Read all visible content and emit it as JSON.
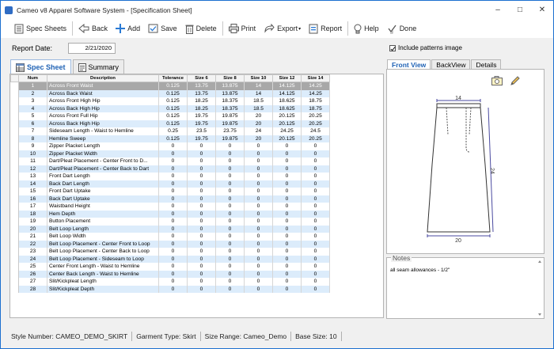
{
  "window": {
    "title": "Cameo v8 Apparel Software System - [Specification Sheet]"
  },
  "toolbar": {
    "spec_sheets": "Spec Sheets",
    "back": "Back",
    "add": "Add",
    "save": "Save",
    "delete": "Delete",
    "print": "Print",
    "export": "Export",
    "report": "Report",
    "help": "Help",
    "done": "Done"
  },
  "report_date": {
    "label": "Report Date:",
    "value": "2/21/2020"
  },
  "left_tabs": {
    "spec_sheet": "Spec Sheet",
    "summary": "Summary"
  },
  "grid": {
    "columns": [
      "Num",
      "Description",
      "Tolerance",
      "Size 6",
      "Size 8",
      "Size 10",
      "Size 12",
      "Size 14"
    ],
    "rows": [
      [
        "1",
        "Across Front Waist",
        "0.125",
        "13.75",
        "13.875",
        "14",
        "14.125",
        "14.25"
      ],
      [
        "2",
        "Across Back Waist",
        "0.125",
        "13.75",
        "13.875",
        "14",
        "14.125",
        "14.25"
      ],
      [
        "3",
        "Across Front High Hip",
        "0.125",
        "18.25",
        "18.375",
        "18.5",
        "18.625",
        "18.75"
      ],
      [
        "4",
        "Across Back High Hip",
        "0.125",
        "18.25",
        "18.375",
        "18.5",
        "18.625",
        "18.75"
      ],
      [
        "5",
        "Across Front Full Hip",
        "0.125",
        "19.75",
        "19.875",
        "20",
        "20.125",
        "20.25"
      ],
      [
        "6",
        "Across Back High Hip",
        "0.125",
        "19.75",
        "19.875",
        "20",
        "20.125",
        "20.25"
      ],
      [
        "7",
        "Sideseam Length - Waist to Hemline",
        "0.25",
        "23.5",
        "23.75",
        "24",
        "24.25",
        "24.5"
      ],
      [
        "8",
        "Hemline Sweep",
        "0.125",
        "19.75",
        "19.875",
        "20",
        "20.125",
        "20.25"
      ],
      [
        "9",
        "Zipper Placket Length",
        "0",
        "0",
        "0",
        "0",
        "0",
        "0"
      ],
      [
        "10",
        "Zipper Placket Width",
        "0",
        "0",
        "0",
        "0",
        "0",
        "0"
      ],
      [
        "11",
        "Dart/Pleat Placement - Center Front to D...",
        "0",
        "0",
        "0",
        "0",
        "0",
        "0"
      ],
      [
        "12",
        "Dart/Pleat Placement - Center Back to Dart",
        "0",
        "0",
        "0",
        "0",
        "0",
        "0"
      ],
      [
        "13",
        "Front Dart Length",
        "0",
        "0",
        "0",
        "0",
        "0",
        "0"
      ],
      [
        "14",
        "Back Dart Length",
        "0",
        "0",
        "0",
        "0",
        "0",
        "0"
      ],
      [
        "15",
        "Front Dart Uptake",
        "0",
        "0",
        "0",
        "0",
        "0",
        "0"
      ],
      [
        "16",
        "Back Dart Uptake",
        "0",
        "0",
        "0",
        "0",
        "0",
        "0"
      ],
      [
        "17",
        "Waistband Height",
        "0",
        "0",
        "0",
        "0",
        "0",
        "0"
      ],
      [
        "18",
        "Hem Depth",
        "0",
        "0",
        "0",
        "0",
        "0",
        "0"
      ],
      [
        "19",
        "Button Placement",
        "0",
        "0",
        "0",
        "0",
        "0",
        "0"
      ],
      [
        "20",
        "Belt Loop Length",
        "0",
        "0",
        "0",
        "0",
        "0",
        "0"
      ],
      [
        "21",
        "Belt Loop Width",
        "0",
        "0",
        "0",
        "0",
        "0",
        "0"
      ],
      [
        "22",
        "Belt Loop Placement - Center Front to Loop",
        "0",
        "0",
        "0",
        "0",
        "0",
        "0"
      ],
      [
        "23",
        "Belt Loop Placement - Center Back to Loop",
        "0",
        "0",
        "0",
        "0",
        "0",
        "0"
      ],
      [
        "24",
        "Belt Loop Placement - Sideseam to Loop",
        "0",
        "0",
        "0",
        "0",
        "0",
        "0"
      ],
      [
        "25",
        "Center Front Length - Waist to Hemline",
        "0",
        "0",
        "0",
        "0",
        "0",
        "0"
      ],
      [
        "26",
        "Center Back Length - Waist to Hemline",
        "0",
        "0",
        "0",
        "0",
        "0",
        "0"
      ],
      [
        "27",
        "Slit/Kickpleat Length",
        "0",
        "0",
        "0",
        "0",
        "0",
        "0"
      ],
      [
        "28",
        "Slit/Kickpleat Depth",
        "0",
        "0",
        "0",
        "0",
        "0",
        "0"
      ]
    ],
    "selected_row": 0
  },
  "include_patterns": {
    "label": "Include patterns image",
    "checked": true
  },
  "right_tabs": {
    "front_view": "Front View",
    "back_view": "BackView",
    "details": "Details"
  },
  "sketch": {
    "waist_label": "14",
    "length_label": "24",
    "hem_label": "20"
  },
  "notes": {
    "label": "Notes",
    "text": "all seam allowances - 1/2\""
  },
  "status": {
    "style_number": "Style Number: CAMEO_DEMO_SKIRT",
    "garment_type": "Garment Type: Skirt",
    "size_range": "Size Range: Cameo_Demo",
    "base_size": "Base Size: 10"
  },
  "colors": {
    "accent": "#1f62b5",
    "alt_row": "#dcecfb",
    "selected_row": "#a8a8a8"
  }
}
